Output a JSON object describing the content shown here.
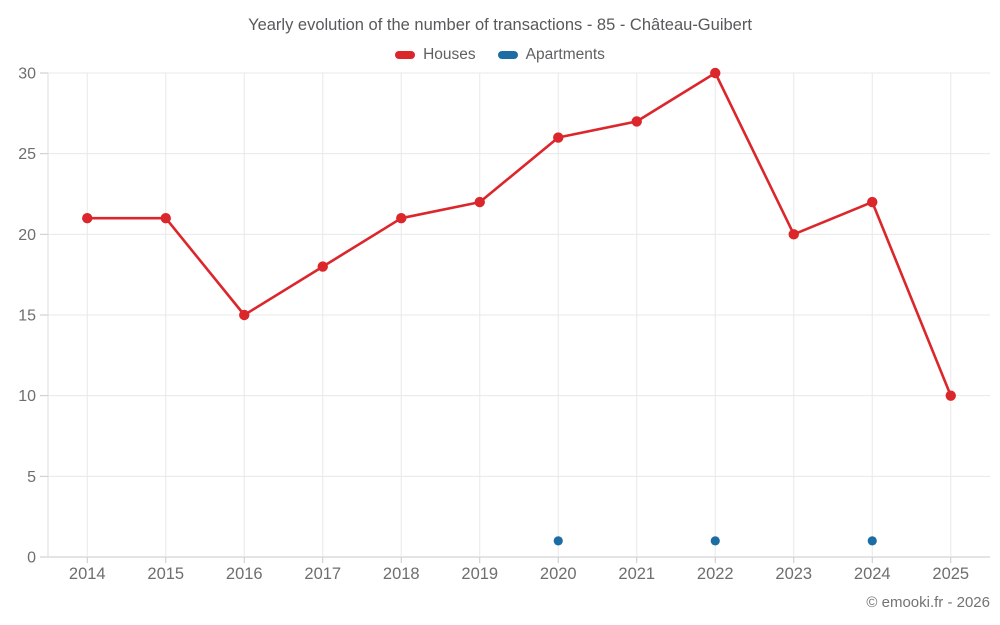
{
  "title": "Yearly evolution of the number of transactions - 85 - Château-Guibert",
  "footer": "© emooki.fr - 2026",
  "colors": {
    "houses": "#db272b",
    "apartments": "#1c6da3",
    "gridline": "#e8e8e8",
    "axis_line": "#c9c9c9",
    "plot_border": "#dcdcdc",
    "tick_label": "#6e6e6e"
  },
  "legend": {
    "items": [
      {
        "label": "Houses",
        "color": "#db272b"
      },
      {
        "label": "Apartments",
        "color": "#1c6da3"
      }
    ]
  },
  "chart_data": {
    "type": "line",
    "title": "Yearly evolution of the number of transactions - 85 - Château-Guibert",
    "categories": [
      "2014",
      "2015",
      "2016",
      "2017",
      "2018",
      "2019",
      "2020",
      "2021",
      "2022",
      "2023",
      "2024",
      "2025"
    ],
    "series": [
      {
        "name": "Houses",
        "color": "#db272b",
        "draw_line": true,
        "values": [
          21,
          21,
          15,
          18,
          21,
          22,
          26,
          27,
          30,
          20,
          22,
          10
        ]
      },
      {
        "name": "Apartments",
        "color": "#1c6da3",
        "draw_line": false,
        "values": [
          null,
          null,
          null,
          null,
          null,
          null,
          1,
          null,
          1,
          null,
          1,
          null
        ]
      }
    ],
    "xlabel": "",
    "ylabel": "",
    "ylim": [
      0,
      30
    ],
    "ytick_step": 5,
    "grid": true,
    "legend_position": "top"
  }
}
